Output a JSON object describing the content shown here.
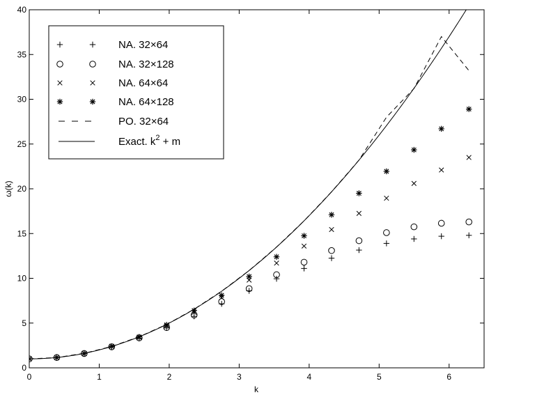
{
  "chart_data": {
    "type": "line",
    "xlabel": "k",
    "ylabel": "ω(k)",
    "xlim": [
      0,
      6.5
    ],
    "ylim": [
      0,
      40
    ],
    "xticks": [
      0,
      1,
      2,
      3,
      4,
      5,
      6
    ],
    "yticks": [
      0,
      5,
      10,
      15,
      20,
      25,
      30,
      35,
      40
    ],
    "grid": false,
    "legend_position": "top-left",
    "series": [
      {
        "name": "NA. 32×64",
        "marker": "plus",
        "x": [
          0,
          0.393,
          0.785,
          1.178,
          1.571,
          1.963,
          2.356,
          2.749,
          3.142,
          3.534,
          3.927,
          4.32,
          4.712,
          5.105,
          5.498,
          5.89,
          6.283
        ],
        "y": [
          1.0,
          1.15,
          1.6,
          2.35,
          3.3,
          4.45,
          5.75,
          7.15,
          8.6,
          9.95,
          11.1,
          12.25,
          13.15,
          13.9,
          14.4,
          14.7,
          14.8
        ]
      },
      {
        "name": "NA. 32×128",
        "marker": "circle",
        "x": [
          0,
          0.393,
          0.785,
          1.178,
          1.571,
          1.963,
          2.356,
          2.749,
          3.142,
          3.534,
          3.927,
          4.32,
          4.712,
          5.105,
          5.498,
          5.89,
          6.283
        ],
        "y": [
          1.0,
          1.15,
          1.6,
          2.35,
          3.35,
          4.5,
          5.9,
          7.4,
          8.85,
          10.4,
          11.8,
          13.1,
          14.2,
          15.1,
          15.75,
          16.15,
          16.3
        ]
      },
      {
        "name": "NA. 64×64",
        "marker": "x",
        "x": [
          0,
          0.393,
          0.785,
          1.178,
          1.571,
          1.963,
          2.356,
          2.749,
          3.142,
          3.534,
          3.927,
          4.32,
          4.712,
          5.105,
          5.498,
          5.89,
          6.283
        ],
        "y": [
          1.0,
          1.15,
          1.6,
          2.4,
          3.4,
          4.7,
          6.2,
          7.85,
          9.8,
          11.7,
          13.6,
          15.45,
          17.25,
          18.95,
          20.6,
          22.1,
          23.5
        ]
      },
      {
        "name": "NA. 64×128",
        "marker": "star",
        "x": [
          0,
          0.393,
          0.785,
          1.178,
          1.571,
          1.963,
          2.356,
          2.749,
          3.142,
          3.534,
          3.927,
          4.32,
          4.712,
          5.105,
          5.498,
          5.89,
          6.283
        ],
        "y": [
          1.0,
          1.15,
          1.6,
          2.4,
          3.45,
          4.8,
          6.4,
          8.1,
          10.2,
          12.4,
          14.75,
          17.1,
          19.5,
          21.95,
          24.35,
          26.7,
          28.9
        ]
      },
      {
        "name": "PO. 32×64",
        "style": "dashed",
        "x": [
          0,
          0.393,
          0.785,
          1.178,
          1.571,
          1.963,
          2.356,
          2.749,
          3.142,
          3.534,
          3.927,
          4.32,
          4.712,
          5.105,
          5.498,
          5.89,
          6.283
        ],
        "y": [
          1.0,
          1.15,
          1.62,
          2.39,
          3.47,
          4.85,
          6.55,
          8.56,
          10.87,
          13.49,
          16.42,
          19.66,
          23.2,
          28.0,
          31.2,
          37.0,
          33.2
        ]
      },
      {
        "name": "Exact. k² + m",
        "style": "solid",
        "function": "k^2 + 1"
      }
    ]
  },
  "legend": {
    "entries": [
      {
        "prefix": "NA. 32",
        "suffix": "64",
        "sup": ""
      },
      {
        "prefix": "NA. 32",
        "suffix": "128",
        "sup": ""
      },
      {
        "prefix": "NA. 64",
        "suffix": "64",
        "sup": ""
      },
      {
        "prefix": "NA. 64",
        "suffix": "128",
        "sup": ""
      },
      {
        "prefix": "PO. 32",
        "suffix": "64",
        "sup": ""
      },
      {
        "prefix": "Exact. k",
        "suffix": " + m",
        "sup": "2"
      }
    ]
  }
}
